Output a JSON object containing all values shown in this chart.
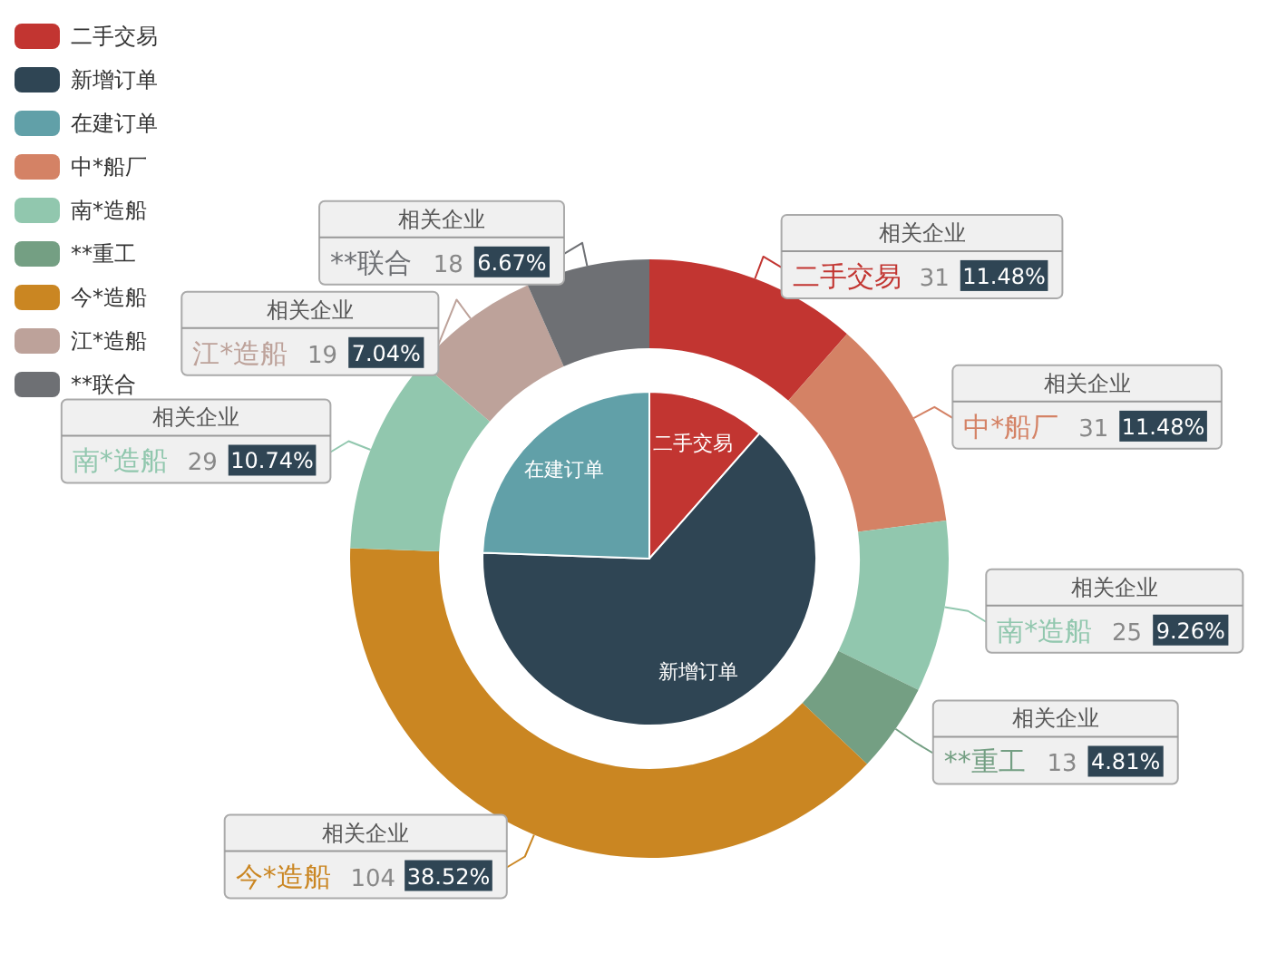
{
  "chart_data": [
    {
      "type": "pie",
      "legend": "top left",
      "categories": [
        "二手交易",
        "新增订单",
        "在建订单"
      ],
      "values": [
        11.48,
        64.08,
        24.44
      ],
      "colors": [
        "#c23531",
        "#2f4554",
        "#61a0a8"
      ]
    },
    {
      "type": "donut",
      "legend": "top left",
      "categories": [
        "二手交易",
        "中*船厂",
        "南*造船",
        "**重工",
        "今*造船",
        "南*造船",
        "江*造船",
        "**联合"
      ],
      "values": [
        31,
        31,
        25,
        13,
        104,
        29,
        19,
        18
      ],
      "data_labels": true,
      "colors": [
        "#c23531",
        "#d48265",
        "#91c7ae",
        "#749f83",
        "#ca8622",
        "#91c7ae",
        "#bda29a",
        "#6e7074"
      ],
      "annotations": [
        "相关企业",
        "11.48%",
        "相关企业",
        "11.48%",
        "相关企业",
        "9.26%",
        "相关企业",
        "4.81%",
        "相关企业",
        "38.52%",
        "相关企业",
        "10.74%",
        "相关企业",
        "7.04%",
        "相关企业",
        "6.67%"
      ]
    }
  ]
}
